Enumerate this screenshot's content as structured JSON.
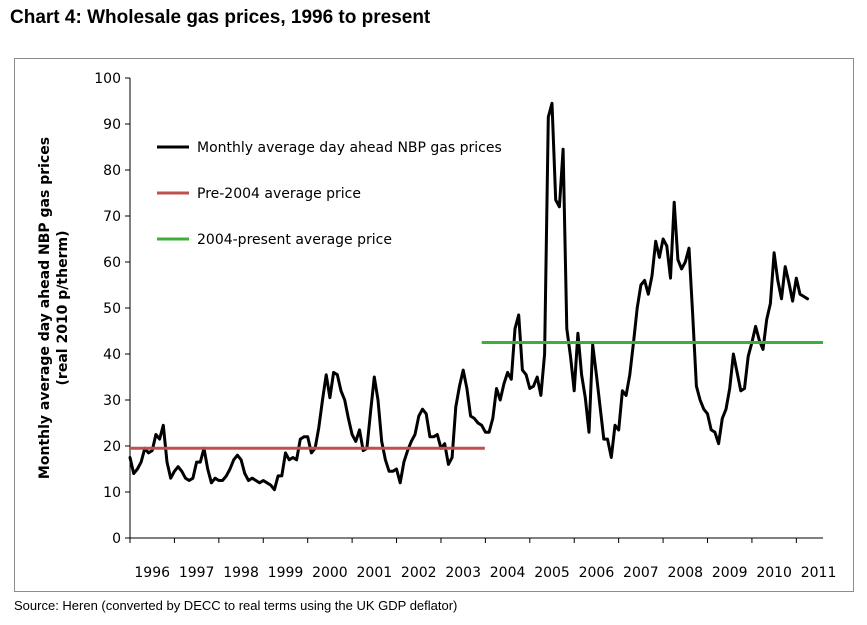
{
  "title": "Chart 4: Wholesale gas prices, 1996 to present",
  "source": "Source: Heren (converted by DECC to real terms using the UK GDP deflator)",
  "colors": {
    "monthly": "#000000",
    "pre2004": "#c0504d",
    "post2004": "#3cae3c",
    "frame": "#8c8c8c"
  },
  "chart_data": {
    "type": "line",
    "ylabel_lines": [
      "Monthly average day ahead NBP gas prices",
      "(real 2010 p/therm)"
    ],
    "xlabel": "",
    "ylim": [
      0,
      100
    ],
    "y_ticks": [
      0,
      10,
      20,
      30,
      40,
      50,
      60,
      70,
      80,
      90,
      100
    ],
    "x_ticks": [
      "1996",
      "1997",
      "1998",
      "1999",
      "2000",
      "2001",
      "2002",
      "2003",
      "2004",
      "2005",
      "2006",
      "2007",
      "2008",
      "2009",
      "2010",
      "2011"
    ],
    "grid": false,
    "legend_position": "upper-left",
    "series": [
      {
        "name": "Monthly average day ahead NBP gas prices",
        "x_start": "1996-01",
        "step": "month",
        "values": [
          17.5,
          14,
          15,
          16.5,
          19.5,
          18.5,
          19,
          22.5,
          21.5,
          24.5,
          16.5,
          13,
          14.5,
          15.5,
          14.5,
          13,
          12.5,
          13,
          16.5,
          16.5,
          19.5,
          15,
          12,
          13,
          12.5,
          12.5,
          13.5,
          15,
          17,
          18,
          17,
          14,
          12.5,
          13,
          12.5,
          12,
          12.5,
          12,
          11.5,
          10.5,
          13.5,
          13.5,
          18.5,
          17,
          17.5,
          17,
          21.5,
          22,
          22,
          18.5,
          19.5,
          24,
          30,
          35.5,
          30.5,
          36,
          35.5,
          32,
          30,
          26,
          22.5,
          21,
          23.5,
          19,
          19.5,
          27.5,
          35,
          30,
          21,
          17,
          14.5,
          14.5,
          15,
          12,
          16.5,
          19,
          21,
          22.5,
          26.5,
          28,
          27,
          22,
          22,
          22.5,
          19.5,
          20.5,
          16,
          17.5,
          28.5,
          33,
          36.5,
          32.5,
          26.5,
          26,
          25,
          24.5,
          23,
          23,
          26,
          32.5,
          30,
          33.5,
          36,
          34.5,
          45.5,
          48.5,
          36.5,
          35.5,
          32.5,
          33,
          35,
          31,
          40,
          91.5,
          94.5,
          73.5,
          72,
          84.5,
          45.5,
          39.5,
          32,
          44.5,
          35.5,
          30.5,
          23,
          42,
          35.5,
          28.5,
          21.5,
          21.5,
          17.5,
          24.5,
          23.5,
          32,
          31,
          35.5,
          42.5,
          50,
          55,
          56,
          53,
          57,
          64.5,
          61,
          65,
          63.5,
          56.5,
          73,
          60.5,
          58.5,
          60,
          63,
          48.5,
          33,
          30,
          28,
          27,
          23.5,
          23,
          20.5,
          26,
          28,
          32.5,
          40,
          36,
          32,
          32.5,
          39.5,
          42.5,
          46,
          43,
          41,
          47.5,
          51,
          62,
          56,
          52,
          59,
          55.5,
          51.5,
          56.5,
          53,
          52.5,
          52
        ]
      },
      {
        "name": "Pre-2004 average price",
        "from": "1996-01",
        "to": "2003-12",
        "value": 19.5
      },
      {
        "name": "2004-present average price",
        "from": "2004-01",
        "to": "2011-06",
        "value": 42.5
      }
    ]
  }
}
